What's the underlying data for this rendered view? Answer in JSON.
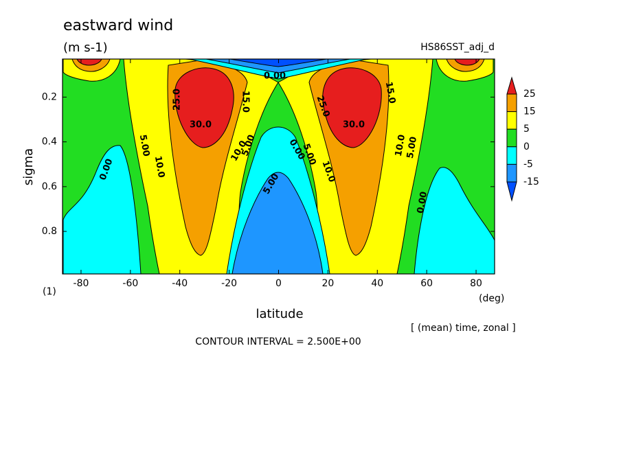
{
  "chart_data": {
    "type": "contour",
    "title": "eastward wind",
    "subtitle": "(m s-1)",
    "dataset": "HS86SST_adj_d",
    "xlabel": "latitude",
    "ylabel": "sigma",
    "x_unit": "(deg)",
    "y_unit": "(1)",
    "note": "[ (mean) time, zonal ]",
    "contour_interval": "CONTOUR INTERVAL = 2.500E+00",
    "xlim": [
      -87.5,
      87.5
    ],
    "xticks": [
      -80,
      -60,
      -40,
      -20,
      0,
      20,
      40,
      60,
      80
    ],
    "ylim": [
      0.03,
      0.99
    ],
    "yticks": [
      0.2,
      0.4,
      0.6,
      0.8
    ],
    "colorbar": {
      "levels": [
        25,
        15,
        5,
        0,
        -5,
        -15
      ],
      "colors": [
        "#e61e1e",
        "#f5a000",
        "#ffff00",
        "#22dd22",
        "#00ffff",
        "#1e96ff",
        "#0050ff"
      ]
    },
    "contour_labels": [
      "30.0",
      "25.0",
      "15.0",
      "10.0",
      "5.00",
      "5.00",
      "10.0",
      "0.00",
      "5.00",
      "0.00",
      "5.00",
      "10.0",
      "25.0",
      "30.0",
      "15.0",
      "10.0",
      "5.00",
      "0.00",
      "0.00"
    ]
  }
}
